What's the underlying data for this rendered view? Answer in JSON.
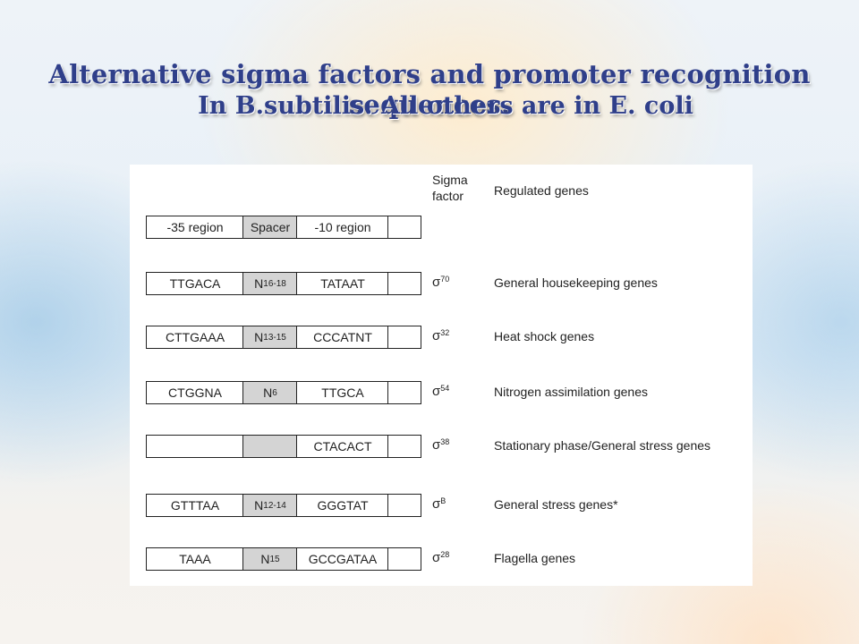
{
  "title": {
    "line1": "Alternative sigma factors and promoter recognition sequences.",
    "line2": "In B.subtilis. All others are in E. coli"
  },
  "table": {
    "header": {
      "col_35": "-35 region",
      "col_spacer": "Spacer",
      "col_10": "-10 region",
      "sigma_line1": "Sigma",
      "sigma_line2": "factor",
      "genes": "Regulated genes"
    },
    "rows": [
      {
        "m35": "TTGACA",
        "spacer": "N",
        "spacer_sub": "16-18",
        "m10": "TATAAT",
        "sigma": "σ",
        "sigma_sup": "70",
        "genes": "General housekeeping genes"
      },
      {
        "m35": "CTTGAAA",
        "spacer": "N",
        "spacer_sub": "13-15",
        "m10": "CCCATNT",
        "sigma": "σ",
        "sigma_sup": "32",
        "genes": "Heat shock genes"
      },
      {
        "m35": "CTGGNA",
        "spacer": "N",
        "spacer_sub": "6",
        "m10": "TTGCA",
        "sigma": "σ",
        "sigma_sup": "54",
        "genes": "Nitrogen assimilation  genes"
      },
      {
        "m35": "",
        "spacer": "",
        "spacer_sub": "",
        "m10": "CTACACT",
        "sigma": "σ",
        "sigma_sup": "38",
        "genes": "Stationary phase/General stress genes"
      },
      {
        "m35": "GTTTAA",
        "spacer": "N",
        "spacer_sub": "12-14",
        "m10": "GGGTAT",
        "sigma": "σ",
        "sigma_sup": "B",
        "genes": "General stress genes*"
      },
      {
        "m35": "TAAA",
        "spacer": "N",
        "spacer_sub": "15",
        "m10": "GCCGATAA",
        "sigma": "σ",
        "sigma_sup": "28",
        "genes": "Flagella genes"
      }
    ]
  }
}
